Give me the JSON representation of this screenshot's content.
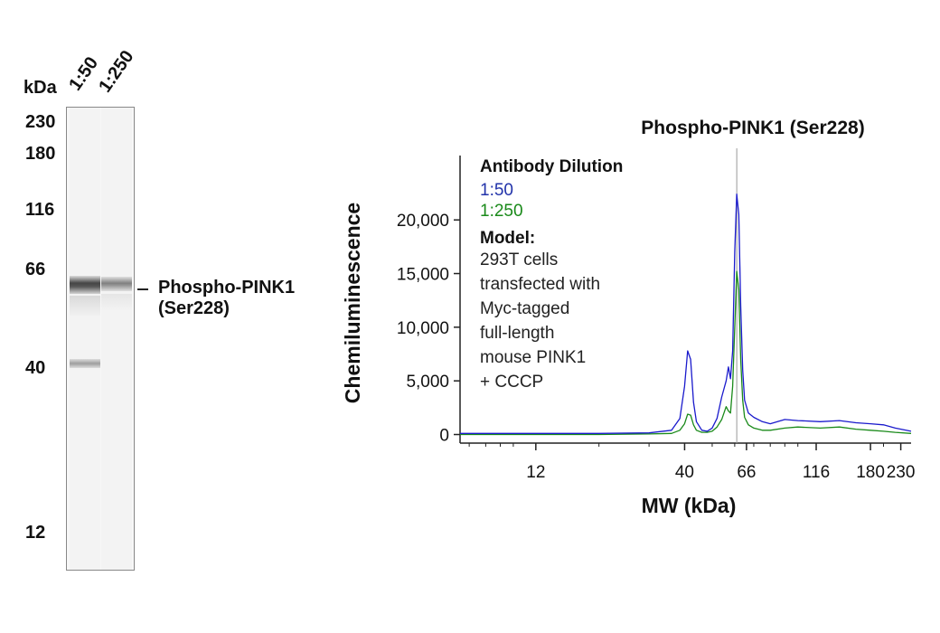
{
  "blot": {
    "unit_label": "kDa",
    "lanes": [
      "1:50",
      "1:250"
    ],
    "markers": [
      "230",
      "180",
      "116",
      "66",
      "40",
      "12"
    ],
    "band_label_line1": "Phospho-PINK1",
    "band_label_line2": "(Ser228)"
  },
  "chart_data": {
    "type": "line",
    "title": "Phospho-PINK1 (Ser228)",
    "xlabel": "MW (kDa)",
    "ylabel": "Chemiluminescence",
    "x_scale": "log",
    "xlim": [
      6.5,
      250
    ],
    "ylim": [
      -800,
      26000
    ],
    "x_ticks": [
      12,
      40,
      66,
      116,
      180,
      230
    ],
    "x_tick_labels": [
      "12",
      "40",
      "66",
      "116",
      "180",
      "230"
    ],
    "y_ticks": [
      0,
      5000,
      10000,
      15000,
      20000
    ],
    "y_tick_labels": [
      "0",
      "5,000",
      "10,000",
      "15,000",
      "20,000"
    ],
    "reference_line_x": 61,
    "legend": {
      "heading": "Antibody Dilution",
      "model_heading": "Model:",
      "model_lines": [
        "293T cells",
        "transfected with",
        "Myc-tagged",
        "full-length",
        "mouse PINK1",
        "+ CCCP"
      ]
    },
    "series": [
      {
        "name": "1:50",
        "color": "#1a1acc",
        "x": [
          6.5,
          10,
          20,
          30,
          36,
          38.5,
          40,
          41,
          42,
          43,
          44,
          46,
          48,
          50,
          52,
          54,
          56,
          57,
          58,
          59,
          60,
          61,
          62,
          63,
          64,
          65,
          67,
          70,
          75,
          80,
          90,
          100,
          120,
          140,
          160,
          180,
          200,
          220,
          250
        ],
        "y": [
          100,
          100,
          100,
          150,
          400,
          1500,
          4500,
          7800,
          7000,
          3000,
          1200,
          400,
          300,
          600,
          1500,
          3500,
          5000,
          6300,
          5200,
          7800,
          17000,
          22400,
          20500,
          12000,
          6000,
          3200,
          2000,
          1600,
          1200,
          1000,
          1400,
          1300,
          1200,
          1300,
          1100,
          1000,
          900,
          600,
          300
        ]
      },
      {
        "name": "1:250",
        "color": "#1a8a1a",
        "x": [
          6.5,
          10,
          20,
          30,
          36,
          38.5,
          40,
          41,
          42,
          43,
          44,
          46,
          48,
          50,
          52,
          54,
          56,
          57,
          58,
          59,
          60,
          61,
          62,
          63,
          64,
          65,
          67,
          70,
          75,
          80,
          90,
          100,
          120,
          140,
          160,
          180,
          200,
          220,
          250
        ],
        "y": [
          0,
          0,
          0,
          50,
          100,
          400,
          1000,
          1900,
          1800,
          900,
          400,
          200,
          200,
          300,
          700,
          1400,
          2600,
          2200,
          2000,
          4500,
          10000,
          15200,
          13500,
          7000,
          3200,
          1600,
          900,
          600,
          400,
          400,
          600,
          700,
          600,
          700,
          500,
          400,
          300,
          200,
          100
        ]
      }
    ]
  }
}
